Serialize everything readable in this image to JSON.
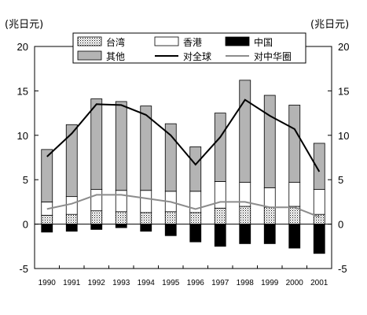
{
  "chart_data": {
    "type": "bar",
    "unit_left": "(兆日元)",
    "unit_right": "(兆日元)",
    "categories": [
      "1990",
      "1991",
      "1992",
      "1993",
      "1994",
      "1995",
      "1996",
      "1997",
      "1998",
      "1999",
      "2000",
      "2001"
    ],
    "ylim": [
      -5,
      20
    ],
    "yticks": [
      -5,
      0,
      5,
      10,
      15,
      20
    ],
    "series": [
      {
        "name": "台湾",
        "kind": "stacked-bar",
        "pattern": "dots",
        "values": [
          1.0,
          1.1,
          1.5,
          1.4,
          1.3,
          1.4,
          1.3,
          1.8,
          2.0,
          1.9,
          2.0,
          1.1
        ]
      },
      {
        "name": "香港",
        "kind": "stacked-bar",
        "pattern": "white",
        "values": [
          1.5,
          2.0,
          2.4,
          2.4,
          2.5,
          2.3,
          2.4,
          3.0,
          2.7,
          2.2,
          2.7,
          2.8
        ]
      },
      {
        "name": "其他",
        "kind": "stacked-bar",
        "pattern": "gray",
        "values": [
          5.9,
          8.1,
          10.2,
          10.0,
          9.5,
          7.6,
          5.0,
          7.7,
          11.5,
          10.4,
          8.7,
          5.2
        ]
      },
      {
        "name": "中国",
        "kind": "negative-bar",
        "pattern": "black",
        "values": [
          -0.9,
          -0.8,
          -0.6,
          -0.4,
          -0.8,
          -1.3,
          -2.0,
          -2.5,
          -2.2,
          -2.2,
          -2.7,
          -3.3
        ]
      },
      {
        "name": "对全球",
        "kind": "line",
        "color": "#000000",
        "values": [
          7.6,
          10.2,
          13.5,
          13.4,
          12.3,
          10.0,
          6.7,
          9.8,
          14.0,
          12.2,
          10.7,
          5.9
        ]
      },
      {
        "name": "对中华圈",
        "kind": "line",
        "color": "#8c8c8c",
        "values": [
          1.7,
          2.3,
          3.3,
          3.3,
          2.9,
          2.5,
          1.7,
          2.5,
          2.5,
          1.9,
          1.9,
          0.8
        ]
      }
    ],
    "legend": {
      "placement": "top-center",
      "entries": [
        {
          "label": "台湾",
          "pattern": "dots"
        },
        {
          "label": "香港",
          "pattern": "white"
        },
        {
          "label": "中国",
          "pattern": "black"
        },
        {
          "label": "其他",
          "pattern": "gray"
        },
        {
          "label": "对全球",
          "line": "#000000"
        },
        {
          "label": "对中华圈",
          "line": "#8c8c8c"
        }
      ]
    },
    "grid": false,
    "colors": {
      "gray_bar": "#b4b4b4",
      "black_bar": "#000000",
      "line_world": "#000000",
      "line_greater_china": "#8c8c8c"
    }
  }
}
